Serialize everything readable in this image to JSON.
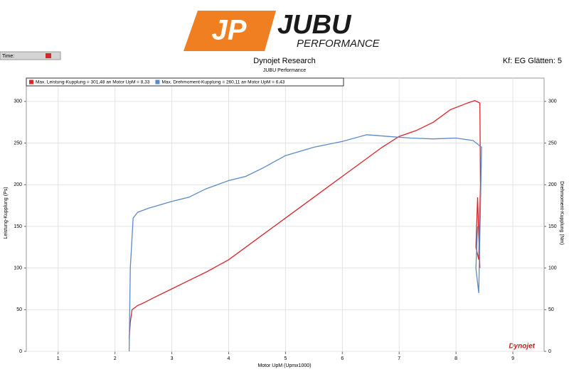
{
  "header": {
    "logo_mark": "JP",
    "logo_name": "JUBU",
    "logo_tagline": "PERFORMANCE",
    "time_label": "Time:"
  },
  "chart_data": {
    "type": "line",
    "title": "Dynojet Research",
    "subtitle": "JUBU Performance",
    "annotation": "Kf: EG Glätten: 5",
    "watermark": "Dynojet",
    "x_label": "Motor UpM (Upmx1000)",
    "y_label": "Leistung-Kupplung (Ps)",
    "y2_label": "Drehmoment-Kupplung (Nm)",
    "xlim": [
      0.44,
      9.55
    ],
    "xticks": [
      1,
      2,
      3,
      4,
      5,
      6,
      7,
      8,
      9
    ],
    "ylim": [
      0,
      328
    ],
    "yticks": [
      0,
      50,
      100,
      150,
      200,
      250,
      300
    ],
    "y2lim": [
      0,
      328
    ],
    "y2ticks": [
      0,
      50,
      100,
      150,
      200,
      250,
      300
    ],
    "grid": true,
    "legend": "top-left",
    "series": [
      {
        "name": "Max. Leistung-Kupplung = 301,48 an Motor UpM = 8,33",
        "color": "#d9262b",
        "x": [
          2.25,
          2.27,
          2.3,
          2.4,
          2.5,
          2.7,
          3.0,
          3.3,
          3.6,
          4.0,
          4.3,
          4.6,
          5.0,
          5.4,
          5.8,
          6.1,
          6.4,
          6.7,
          7.0,
          7.3,
          7.6,
          7.9,
          8.2,
          8.33,
          8.42,
          8.43,
          8.4,
          8.35,
          8.38,
          8.42
        ],
        "values": [
          15,
          35,
          50,
          55,
          58,
          65,
          75,
          85,
          95,
          110,
          125,
          140,
          160,
          180,
          200,
          215,
          230,
          245,
          258,
          265,
          275,
          290,
          298,
          301,
          298,
          200,
          110,
          125,
          185,
          100
        ]
      },
      {
        "name": "Max. Drehmoment-Kupplung = 260,11 an Motor UpM = 6,43",
        "color": "#5b8ac6",
        "axis": "y2",
        "x": [
          2.25,
          2.27,
          2.32,
          2.4,
          2.6,
          3.0,
          3.3,
          3.6,
          4.0,
          4.3,
          4.6,
          5.0,
          5.5,
          6.0,
          6.43,
          6.8,
          7.2,
          7.6,
          8.0,
          8.3,
          8.45,
          8.4,
          8.35,
          8.38
        ],
        "values": [
          0,
          100,
          160,
          167,
          172,
          180,
          185,
          195,
          205,
          210,
          220,
          235,
          245,
          252,
          260,
          258,
          256,
          255,
          256,
          253,
          245,
          70,
          100,
          150
        ]
      }
    ]
  }
}
